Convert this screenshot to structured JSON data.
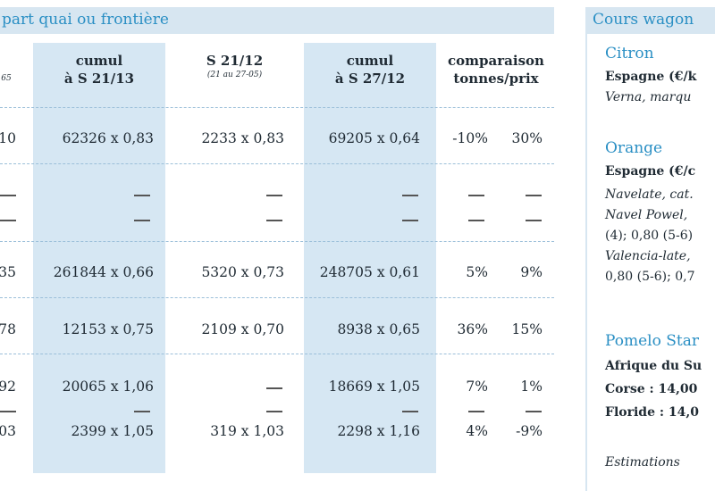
{
  "table": {
    "title": "part quai ou frontière",
    "headers": [
      {
        "label": "",
        "sub": "65"
      },
      {
        "label": "cumul",
        "label2": "à S 21/13",
        "sub": ""
      },
      {
        "label": "S 21/12",
        "label2": "",
        "sub": "(21 au 27-05)"
      },
      {
        "label": "cumul",
        "label2": "à S 27/12",
        "sub": ""
      },
      {
        "label": "comparaison",
        "label2": "tonnes/prix",
        "sub": ""
      }
    ],
    "rows": [
      [
        "10",
        "62326 x 0,83",
        "2233 x 0,83",
        "69205 x 0,64",
        "-10%",
        "30%"
      ],
      [
        "—",
        "—",
        "—",
        "—",
        "—",
        "—"
      ],
      [
        "—",
        "—",
        "—",
        "—",
        "—",
        "—"
      ],
      [
        "35",
        "261844 x 0,66",
        "5320 x 0,73",
        "248705 x 0,61",
        "5%",
        "9%"
      ],
      [
        "78",
        "12153 x 0,75",
        "2109 x 0,70",
        "8938 x 0,65",
        "36%",
        "15%"
      ],
      [
        "92",
        "20065 x 1,06",
        "—",
        "18669 x 1,05",
        "7%",
        "1%"
      ],
      [
        "—",
        "—",
        "—",
        "—",
        "—",
        "—"
      ],
      [
        "03",
        "2399 x 1,05",
        "319 x 1,03",
        "2298 x 1,16",
        "4%",
        "-9%"
      ]
    ]
  },
  "panel": {
    "title": "Cours wagon",
    "lines": [
      {
        "text": "Citron",
        "style": "head"
      },
      {
        "text": "Espagne (€/k",
        "style": "bold"
      },
      {
        "text": "Verna, marqu",
        "style": "ital"
      },
      {
        "text": "Orange",
        "style": "head"
      },
      {
        "text": "Espagne (€/c",
        "style": "bold"
      },
      {
        "text": "Navelate, cat.",
        "style": "ital"
      },
      {
        "text": "Navel Powel,",
        "style": "ital"
      },
      {
        "text": "(4); 0,80 (5-6)",
        "style": "plain"
      },
      {
        "text": "Valencia-late,",
        "style": "ital"
      },
      {
        "text": "0,80 (5-6); 0,7",
        "style": "plain"
      },
      {
        "text": "Pomelo Star",
        "style": "head"
      },
      {
        "text": "Afrique du Su",
        "style": "bold"
      },
      {
        "text": "Corse : 14,00",
        "style": "bold"
      },
      {
        "text": "Floride : 14,0",
        "style": "bold"
      },
      {
        "text": "Estimations",
        "style": "ital"
      }
    ]
  }
}
